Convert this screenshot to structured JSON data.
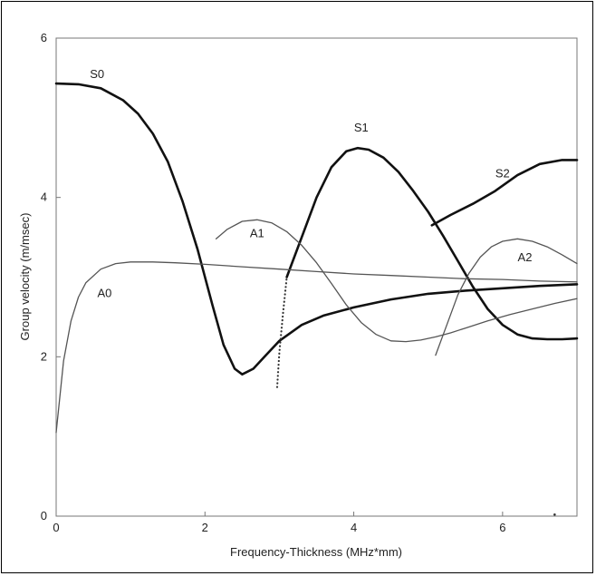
{
  "chart_data": {
    "type": "line",
    "xlabel": "Frequency-Thickness (MHz*mm)",
    "ylabel": "Group velocity (m/msec)",
    "xlim": [
      0,
      7
    ],
    "ylim": [
      0,
      6
    ],
    "x_ticks": [
      "0",
      "2",
      "4",
      "6"
    ],
    "y_ticks": [
      "0",
      "2",
      "4",
      "6"
    ],
    "grid": false,
    "series": [
      {
        "name": "S0",
        "style": "thick",
        "color": "#111111",
        "x": [
          0,
          0.3,
          0.6,
          0.9,
          1.1,
          1.3,
          1.5,
          1.7,
          1.9,
          2.1,
          2.25,
          2.4,
          2.5,
          2.65,
          2.8,
          3.0,
          3.3,
          3.6,
          4.0,
          4.5,
          5.0,
          5.5,
          6.0,
          6.5,
          7.0
        ],
        "y": [
          5.43,
          5.42,
          5.37,
          5.22,
          5.05,
          4.8,
          4.45,
          3.95,
          3.35,
          2.65,
          2.15,
          1.85,
          1.78,
          1.85,
          2.0,
          2.2,
          2.4,
          2.52,
          2.62,
          2.72,
          2.79,
          2.83,
          2.86,
          2.89,
          2.91
        ]
      },
      {
        "name": "S1",
        "style": "thick",
        "color": "#111111",
        "x": [
          3.1,
          3.3,
          3.5,
          3.7,
          3.9,
          4.05,
          4.2,
          4.4,
          4.6,
          4.8,
          5.0,
          5.2,
          5.4,
          5.6,
          5.8,
          6.0,
          6.2,
          6.4,
          6.6,
          6.8,
          7.0
        ],
        "y": [
          3.0,
          3.5,
          4.0,
          4.38,
          4.58,
          4.62,
          4.6,
          4.5,
          4.32,
          4.08,
          3.82,
          3.52,
          3.2,
          2.88,
          2.6,
          2.4,
          2.28,
          2.23,
          2.22,
          2.22,
          2.23
        ]
      },
      {
        "name": "S1",
        "style": "dotted",
        "color": "#333333",
        "x": [
          2.97,
          3.0,
          3.05,
          3.1
        ],
        "y": [
          1.62,
          2.05,
          2.55,
          3.0
        ]
      },
      {
        "name": "S2",
        "style": "thick",
        "color": "#111111",
        "x": [
          5.05,
          5.3,
          5.6,
          5.9,
          6.2,
          6.5,
          6.8,
          7.0
        ],
        "y": [
          3.65,
          3.78,
          3.92,
          4.08,
          4.28,
          4.42,
          4.47,
          4.47
        ]
      },
      {
        "name": "A0",
        "style": "thin",
        "color": "#555555",
        "x": [
          0,
          0.05,
          0.1,
          0.2,
          0.3,
          0.4,
          0.6,
          0.8,
          1.0,
          1.3,
          1.6,
          2.0,
          2.5,
          3.0,
          3.5,
          4.0,
          4.5,
          5.0,
          5.5,
          6.0,
          6.5,
          7.0
        ],
        "y": [
          1.05,
          1.5,
          1.95,
          2.45,
          2.75,
          2.93,
          3.1,
          3.17,
          3.19,
          3.19,
          3.18,
          3.16,
          3.13,
          3.1,
          3.07,
          3.04,
          3.02,
          3.0,
          2.98,
          2.97,
          2.95,
          2.94
        ]
      },
      {
        "name": "A1",
        "style": "thin",
        "color": "#555555",
        "x": [
          2.15,
          2.3,
          2.5,
          2.7,
          2.9,
          3.1,
          3.3,
          3.5,
          3.7,
          3.9,
          4.1,
          4.3,
          4.5,
          4.7,
          4.9,
          5.1,
          5.3,
          5.5,
          5.8,
          6.1,
          6.4,
          6.7,
          7.0
        ],
        "y": [
          3.48,
          3.6,
          3.7,
          3.72,
          3.68,
          3.57,
          3.4,
          3.18,
          2.92,
          2.65,
          2.43,
          2.28,
          2.2,
          2.19,
          2.21,
          2.25,
          2.3,
          2.36,
          2.45,
          2.53,
          2.6,
          2.67,
          2.73
        ]
      },
      {
        "name": "A2",
        "style": "thin",
        "color": "#555555",
        "x": [
          5.1,
          5.25,
          5.4,
          5.55,
          5.7,
          5.85,
          6.0,
          6.2,
          6.4,
          6.6,
          6.8,
          7.0
        ],
        "y": [
          2.02,
          2.4,
          2.78,
          3.05,
          3.25,
          3.38,
          3.45,
          3.48,
          3.45,
          3.38,
          3.28,
          3.17
        ]
      }
    ],
    "annotations": [
      {
        "text": "S0",
        "x": 0.55,
        "y": 5.5
      },
      {
        "text": "S1",
        "x": 4.1,
        "y": 4.83
      },
      {
        "text": "S2",
        "x": 6.0,
        "y": 4.25
      },
      {
        "text": "A0",
        "x": 0.65,
        "y": 2.75
      },
      {
        "text": "A1",
        "x": 2.7,
        "y": 3.5
      },
      {
        "text": "A2",
        "x": 6.3,
        "y": 3.2
      }
    ]
  }
}
